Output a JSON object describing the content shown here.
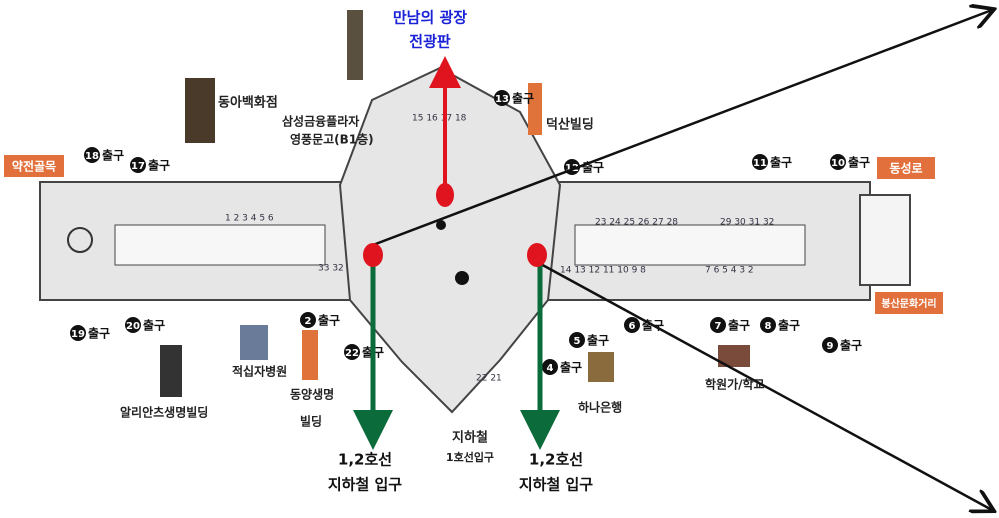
{
  "callouts": {
    "plaza": [
      "만남의 광장",
      "전광판"
    ],
    "subway_left": [
      "1,2호선",
      "지하철 입구"
    ],
    "subway_right": [
      "1,2호선",
      "지하철 입구"
    ],
    "line1": [
      "지하철",
      "1호선입구"
    ]
  },
  "streets": {
    "west": "약전골목",
    "east": "동성로",
    "southeast": "봉산문화거리"
  },
  "buildings": {
    "donga": "동아백화점",
    "samsung": [
      "삼성금융플라자",
      "영풍문고(B1층)"
    ],
    "duksan": "덕산빌딩",
    "redcross": "적십자병원",
    "dongyang": [
      "동양생명",
      "빌딩"
    ],
    "allianz": "알리안츠생명빌딩",
    "hana": "하나은행",
    "academy": "학원가/학교"
  },
  "exit_label": "출구",
  "exits": [
    "18",
    "17",
    "19",
    "20",
    "2",
    "22",
    "13",
    "12",
    "11",
    "10",
    "4",
    "5",
    "6",
    "7",
    "8",
    "9"
  ],
  "shops": [
    "1 2 3 4 5 6",
    "23 24 25 26 27 28",
    "29 30 31 32",
    "14 13 12 11 10 9 8",
    "7 6 5 4 3 2",
    "33 32",
    "15 16 17 18",
    "22 21"
  ]
}
